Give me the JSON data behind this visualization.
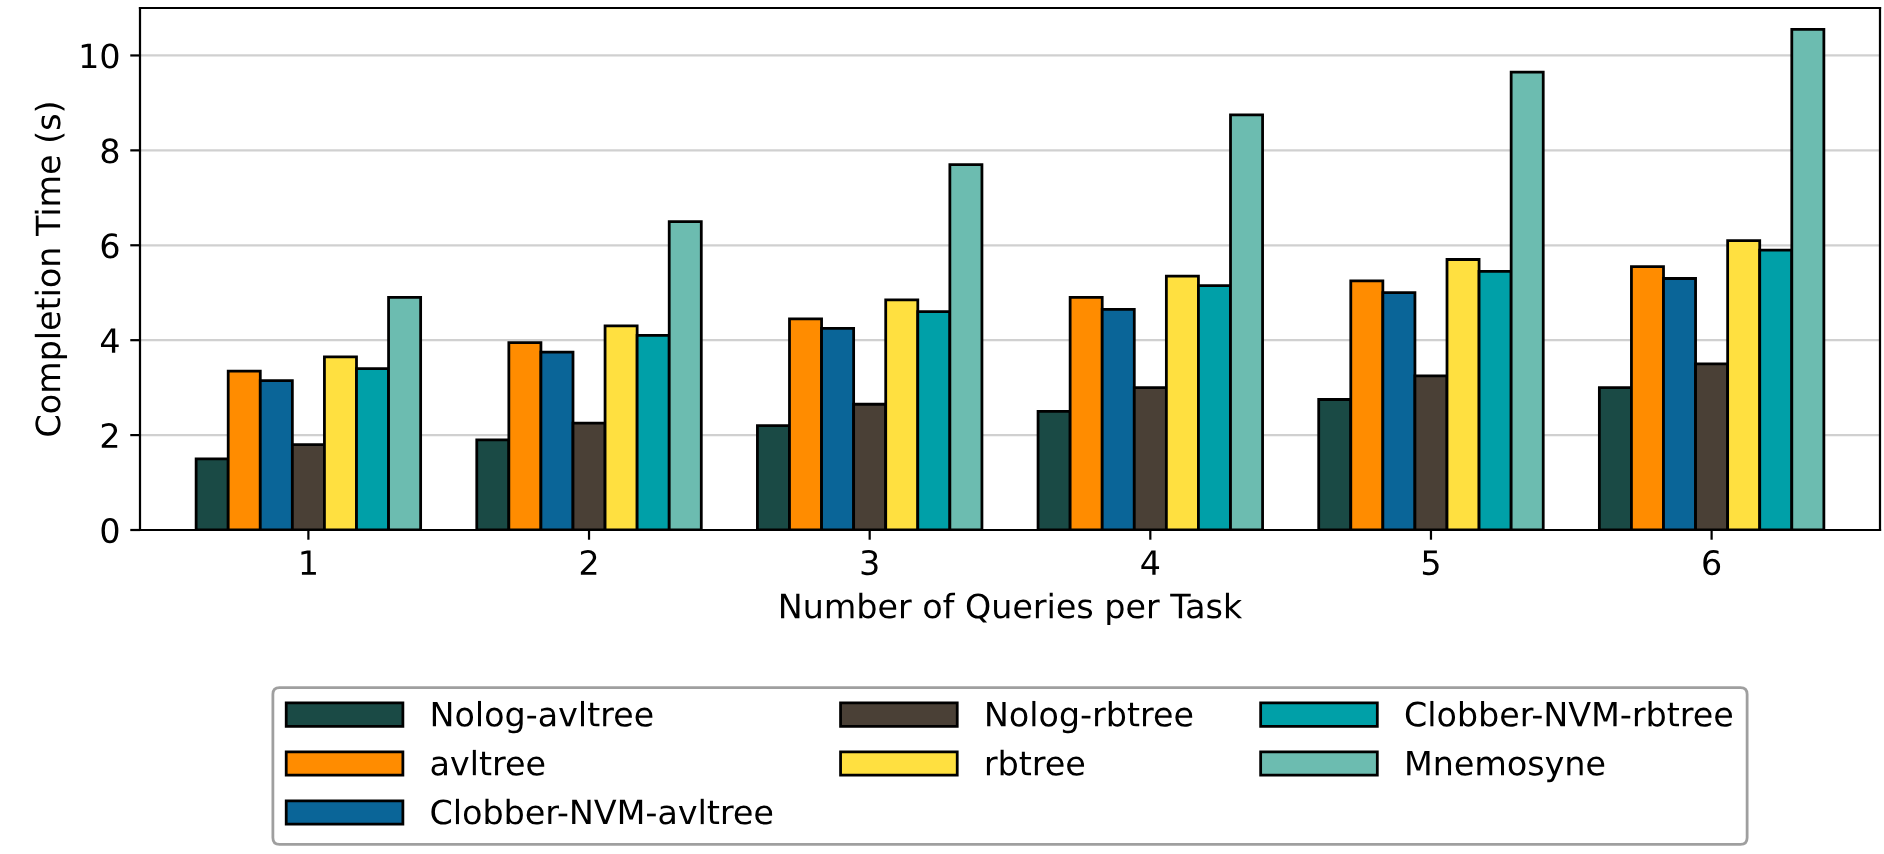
{
  "chart_data": {
    "type": "bar",
    "xlabel": "Number of Queries per Task",
    "ylabel": "Completion Time (s)",
    "categories": [
      "1",
      "2",
      "3",
      "4",
      "5",
      "6"
    ],
    "series": [
      {
        "name": "Nolog-avltree",
        "color": "#1a4a45",
        "values": [
          1.5,
          1.9,
          2.2,
          2.5,
          2.75,
          3.0
        ]
      },
      {
        "name": "avltree",
        "color": "#ff8c00",
        "values": [
          3.35,
          3.95,
          4.45,
          4.9,
          5.25,
          5.55
        ]
      },
      {
        "name": "Clobber-NVM-avltree",
        "color": "#0a6598",
        "values": [
          3.15,
          3.75,
          4.25,
          4.65,
          5.0,
          5.3
        ]
      },
      {
        "name": "Nolog-rbtree",
        "color": "#4a4036",
        "values": [
          1.8,
          2.25,
          2.65,
          3.0,
          3.25,
          3.5
        ]
      },
      {
        "name": "rbtree",
        "color": "#ffe040",
        "values": [
          3.65,
          4.3,
          4.85,
          5.35,
          5.7,
          6.1
        ]
      },
      {
        "name": "Clobber-NVM-rbtree",
        "color": "#00a0a8",
        "values": [
          3.4,
          4.1,
          4.6,
          5.15,
          5.45,
          5.9
        ]
      },
      {
        "name": "Mnemosyne",
        "color": "#6cbcb0",
        "values": [
          4.9,
          6.5,
          7.7,
          8.75,
          9.65,
          10.55
        ]
      }
    ],
    "ylim": [
      0,
      11
    ],
    "yticks": [
      0,
      2,
      4,
      6,
      8,
      10
    ],
    "grid": "y",
    "legend": "bottom"
  }
}
